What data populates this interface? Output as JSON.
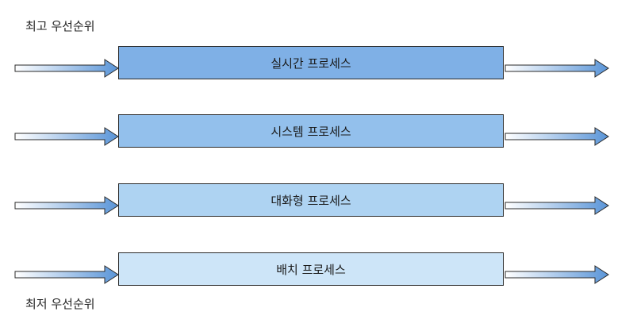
{
  "labels": {
    "highest_priority": "최고 우선순위",
    "lowest_priority": "최저 우선순위"
  },
  "queues": [
    {
      "label": "실시간 프로세스",
      "color": "#7fb0e6"
    },
    {
      "label": "시스템 프로세스",
      "color": "#93c0ec"
    },
    {
      "label": "대화형 프로세스",
      "color": "#aed3f2"
    },
    {
      "label": "배치 프로세스",
      "color": "#cde5f8"
    }
  ],
  "colors": {
    "arrow_start": "#ffffff",
    "arrow_end": "#5a95d8",
    "outline": "#2a2a2a"
  }
}
